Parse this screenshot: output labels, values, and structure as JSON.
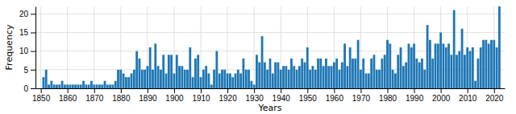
{
  "chart_data": {
    "type": "bar",
    "xlabel": "Years",
    "ylabel": "Frequency",
    "x": [
      1851,
      1852,
      1853,
      1854,
      1855,
      1856,
      1857,
      1858,
      1859,
      1860,
      1861,
      1862,
      1863,
      1864,
      1865,
      1866,
      1867,
      1868,
      1869,
      1870,
      1871,
      1872,
      1873,
      1874,
      1875,
      1876,
      1877,
      1878,
      1879,
      1880,
      1881,
      1882,
      1883,
      1884,
      1885,
      1886,
      1887,
      1888,
      1889,
      1890,
      1891,
      1892,
      1893,
      1894,
      1895,
      1896,
      1897,
      1898,
      1899,
      1900,
      1901,
      1902,
      1903,
      1904,
      1905,
      1906,
      1907,
      1908,
      1909,
      1910,
      1911,
      1912,
      1913,
      1914,
      1915,
      1916,
      1917,
      1918,
      1919,
      1920,
      1921,
      1922,
      1923,
      1924,
      1925,
      1926,
      1927,
      1928,
      1929,
      1930,
      1931,
      1932,
      1933,
      1934,
      1935,
      1936,
      1937,
      1938,
      1939,
      1940,
      1941,
      1942,
      1943,
      1944,
      1945,
      1946,
      1947,
      1948,
      1949,
      1950,
      1951,
      1952,
      1953,
      1954,
      1955,
      1956,
      1957,
      1958,
      1959,
      1960,
      1961,
      1962,
      1963,
      1964,
      1965,
      1966,
      1967,
      1968,
      1969,
      1970,
      1971,
      1972,
      1973,
      1974,
      1975,
      1976,
      1977,
      1978,
      1979,
      1980,
      1981,
      1982,
      1983,
      1984,
      1985,
      1986,
      1987,
      1988,
      1989,
      1990,
      1991,
      1992,
      1993,
      1994,
      1995,
      1996,
      1997,
      1998,
      1999,
      2000,
      2001,
      2002,
      2003,
      2004,
      2005,
      2006,
      2007,
      2008,
      2009,
      2010,
      2011,
      2012,
      2013,
      2014,
      2015,
      2016,
      2017,
      2018,
      2019,
      2020,
      2021,
      2022
    ],
    "values": [
      3,
      5,
      1,
      2,
      1,
      1,
      1,
      2,
      1,
      1,
      1,
      1,
      1,
      1,
      1,
      2,
      1,
      1,
      2,
      1,
      1,
      1,
      1,
      2,
      1,
      1,
      1,
      2,
      5,
      5,
      4,
      3,
      3,
      4,
      5,
      10,
      8,
      5,
      5,
      6,
      11,
      5,
      12,
      6,
      5,
      9,
      4,
      9,
      9,
      4,
      9,
      6,
      6,
      5,
      5,
      11,
      3,
      8,
      9,
      3,
      5,
      6,
      4,
      1,
      5,
      10,
      4,
      5,
      5,
      4,
      4,
      3,
      4,
      5,
      4,
      8,
      5,
      5,
      2,
      1,
      9,
      7,
      14,
      7,
      5,
      8,
      4,
      7,
      7,
      5,
      6,
      6,
      5,
      8,
      6,
      5,
      6,
      8,
      7,
      11,
      5,
      6,
      5,
      8,
      8,
      6,
      8,
      6,
      6,
      7,
      8,
      5,
      7,
      12,
      6,
      11,
      8,
      8,
      13,
      5,
      8,
      4,
      4,
      8,
      9,
      5,
      5,
      8,
      9,
      13,
      12,
      5,
      4,
      9,
      11,
      6,
      7,
      12,
      11,
      12,
      8,
      7,
      8,
      5,
      17,
      13,
      8,
      12,
      12,
      15,
      12,
      11,
      12,
      9,
      21,
      9,
      10,
      16,
      9,
      11,
      10,
      11,
      2,
      8,
      11,
      13,
      13,
      12,
      13,
      13,
      11,
      22
    ],
    "xlim": [
      1848,
      2024
    ],
    "xticks": [
      1850,
      1860,
      1870,
      1880,
      1890,
      1900,
      1910,
      1920,
      1930,
      1940,
      1950,
      1960,
      1970,
      1980,
      1990,
      2000,
      2010,
      2020
    ],
    "ylim": [
      0,
      22
    ],
    "yticks": [
      0,
      5,
      10,
      15,
      20
    ],
    "grid": true
  }
}
